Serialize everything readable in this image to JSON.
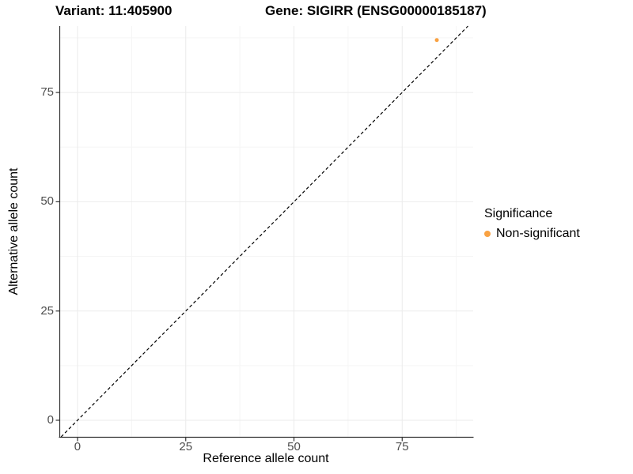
{
  "titles": {
    "variant": "Variant: 11:405900",
    "gene": "Gene: SIGIRR (ENSG00000185187)"
  },
  "axes": {
    "x_label": "Reference allele count",
    "y_label": "Alternative allele count"
  },
  "legend": {
    "title": "Significance",
    "items": [
      {
        "label": "Non-significant",
        "color": "#F9A243"
      }
    ]
  },
  "colors": {
    "point": "#F9A243",
    "axis_line": "#333333",
    "tick_mark": "#333333",
    "tick_text": "#4d4d4d",
    "grid_major": "#EBEBEB",
    "grid_minor": "#F5F5F5",
    "reference_line": "#000000",
    "background": "#FFFFFF"
  },
  "chart_data": {
    "type": "scatter",
    "title": "Variant: 11:405900    Gene: SIGIRR (ENSG00000185187)",
    "xlabel": "Reference allele count",
    "ylabel": "Alternative allele count",
    "xlim": [
      -4.2,
      91.4
    ],
    "ylim": [
      -3.8,
      90.2
    ],
    "x_ticks": [
      0,
      25,
      50,
      75
    ],
    "y_ticks": [
      0,
      25,
      50,
      75
    ],
    "x_minor_ticks": [
      12.5,
      37.5,
      62.5,
      87.5
    ],
    "y_minor_ticks": [
      12.5,
      37.5,
      62.5,
      87.5
    ],
    "grid": true,
    "legend_position": "right",
    "series": [
      {
        "name": "Non-significant",
        "color": "#F9A243",
        "points": [
          {
            "x": 83,
            "y": 87
          }
        ],
        "point_radius": 2.5
      }
    ],
    "reference_line": {
      "kind": "identity",
      "slope": 1,
      "intercept": 0,
      "style": "dashed",
      "color": "#000000"
    }
  }
}
